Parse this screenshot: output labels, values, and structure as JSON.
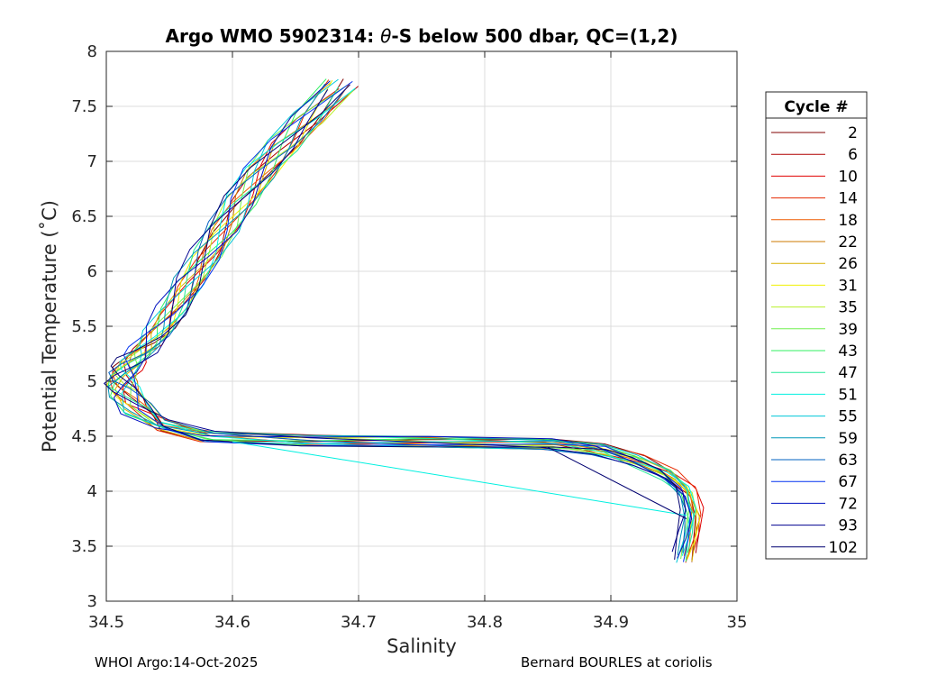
{
  "chart_data": {
    "type": "line",
    "title_prefix": "Argo WMO 5902314: ",
    "title_theta": "θ",
    "title_suffix": "-S below 500 dbar,  QC=(1,2)",
    "xlabel": "Salinity",
    "ylabel": "Potential Temperature (˚C)",
    "xlim": [
      34.5,
      35
    ],
    "ylim": [
      3,
      8
    ],
    "x_ticks": [
      34.5,
      34.6,
      34.7,
      34.8,
      34.9,
      35
    ],
    "x_tick_labels": [
      "34.5",
      "34.6",
      "34.7",
      "34.8",
      "34.9",
      "35"
    ],
    "y_ticks": [
      3,
      3.5,
      4,
      4.5,
      5,
      5.5,
      6,
      6.5,
      7,
      7.5,
      8
    ],
    "y_tick_labels": [
      "3",
      "3.5",
      "4",
      "4.5",
      "5",
      "5.5",
      "6",
      "6.5",
      "7",
      "7.5",
      "8"
    ],
    "grid": true,
    "legend_title": "Cycle #",
    "legend_position": "outside-right",
    "series": [
      {
        "name": "2",
        "color": "#800000"
      },
      {
        "name": "6",
        "color": "#b00000"
      },
      {
        "name": "10",
        "color": "#e00000"
      },
      {
        "name": "14",
        "color": "#e62a00"
      },
      {
        "name": "18",
        "color": "#ee5a00"
      },
      {
        "name": "22",
        "color": "#cc7a00"
      },
      {
        "name": "26",
        "color": "#d8b000"
      },
      {
        "name": "31",
        "color": "#f0f000"
      },
      {
        "name": "35",
        "color": "#b8f028"
      },
      {
        "name": "39",
        "color": "#70f050"
      },
      {
        "name": "43",
        "color": "#30f060"
      },
      {
        "name": "47",
        "color": "#20e898"
      },
      {
        "name": "51",
        "color": "#00f0e0"
      },
      {
        "name": "55",
        "color": "#00c8d8"
      },
      {
        "name": "59",
        "color": "#0098b8"
      },
      {
        "name": "63",
        "color": "#0060c0"
      },
      {
        "name": "67",
        "color": "#0030f0"
      },
      {
        "name": "72",
        "color": "#0010c0"
      },
      {
        "name": "93",
        "color": "#000090"
      },
      {
        "name": "102",
        "color": "#000070"
      }
    ],
    "curve": {
      "salinity": [
        34.686,
        34.66,
        34.64,
        34.622,
        34.607,
        34.594,
        34.58,
        34.566,
        34.553,
        34.541,
        34.531,
        34.522,
        34.515,
        34.512,
        34.515,
        34.525,
        34.545,
        34.58,
        34.66,
        34.75,
        34.85,
        34.89,
        34.92,
        34.945,
        34.96,
        34.965,
        34.962,
        34.958
      ],
      "theta": [
        7.7,
        7.4,
        7.15,
        6.9,
        6.65,
        6.4,
        6.15,
        5.9,
        5.65,
        5.45,
        5.3,
        5.2,
        5.1,
        5.0,
        4.9,
        4.75,
        4.6,
        4.5,
        4.46,
        4.45,
        4.43,
        4.38,
        4.28,
        4.15,
        4.0,
        3.8,
        3.6,
        3.4
      ]
    },
    "outliers": [
      {
        "color": "#00f0e0",
        "salinity": [
          34.6,
          34.96
        ],
        "theta": [
          4.45,
          3.78
        ]
      },
      {
        "color": "#000070",
        "salinity": [
          34.85,
          34.96
        ],
        "theta": [
          4.4,
          3.75
        ]
      }
    ]
  },
  "footer": {
    "left": "WHOI Argo:14-Oct-2025",
    "right": "Bernard BOURLES at coriolis"
  }
}
